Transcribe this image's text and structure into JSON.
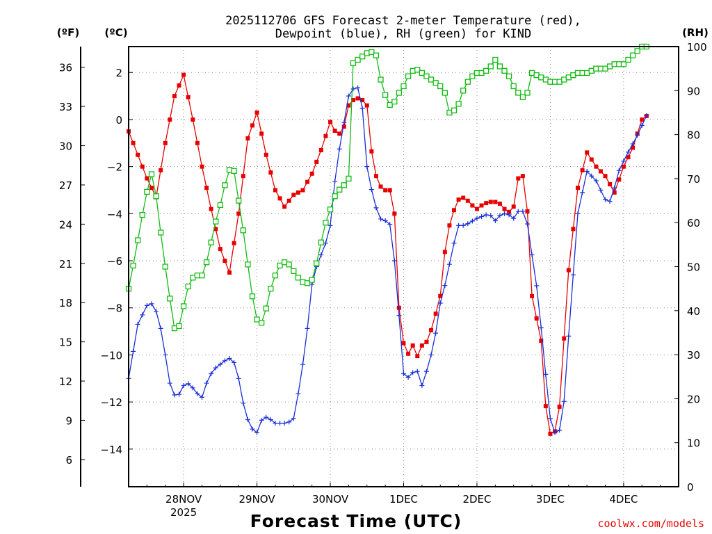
{
  "chart_data": {
    "type": "line",
    "title_line1": "2025112706 GFS Forecast 2-meter Temperature (red),",
    "title_line2": "Dewpoint (blue), RH (green) for KIND",
    "xlabel": "Forecast Time (UTC)",
    "credit": "coolwx.com/models",
    "units": {
      "f": "(ºF)",
      "c": "(ºC)",
      "rh": "(RH)"
    },
    "x_range_hours": [
      0,
      180
    ],
    "x_ticks": [
      {
        "hour": 18,
        "label": "28NOV"
      },
      {
        "hour": 42,
        "label": "29NOV"
      },
      {
        "hour": 66,
        "label": "30NOV"
      },
      {
        "hour": 90,
        "label": "1DEC"
      },
      {
        "hour": 114,
        "label": "2DEC"
      },
      {
        "hour": 138,
        "label": "3DEC"
      },
      {
        "hour": 162,
        "label": "4DEC"
      }
    ],
    "x_year_label": "2025",
    "ylim_c": [
      -15.6,
      3.1
    ],
    "yticks_c": [
      -14,
      -12,
      -10,
      -8,
      -6,
      -4,
      -2,
      0,
      2
    ],
    "yticks_f": [
      6,
      9,
      12,
      15,
      18,
      21,
      24,
      27,
      30,
      33,
      36
    ],
    "ylim_rh": [
      0,
      100
    ],
    "yticks_rh": [
      0,
      10,
      20,
      30,
      40,
      50,
      60,
      70,
      80,
      90,
      100
    ],
    "colors": {
      "temp": "#e60000",
      "dew": "#1a2fd6",
      "rh": "#11bb11",
      "grid": "#888888"
    },
    "series": [
      {
        "name": "Temperature",
        "unit": "C",
        "color": "#e60000",
        "points": [
          [
            0,
            -0.5
          ],
          [
            6,
            -2.5
          ],
          [
            9,
            -3.3
          ],
          [
            12,
            -1.0
          ],
          [
            15,
            1.0
          ],
          [
            18,
            1.9
          ],
          [
            21,
            0.0
          ],
          [
            24,
            -2.0
          ],
          [
            27,
            -3.8
          ],
          [
            30,
            -5.5
          ],
          [
            33,
            -6.5
          ],
          [
            36,
            -4.0
          ],
          [
            39,
            -0.8
          ],
          [
            42,
            0.3
          ],
          [
            45,
            -1.5
          ],
          [
            48,
            -3.0
          ],
          [
            51,
            -3.7
          ],
          [
            54,
            -3.2
          ],
          [
            57,
            -3.0
          ],
          [
            60,
            -2.3
          ],
          [
            63,
            -1.3
          ],
          [
            66,
            -0.1
          ],
          [
            68,
            -0.6
          ],
          [
            70,
            -0.6
          ],
          [
            72,
            0.6
          ],
          [
            74,
            0.9
          ],
          [
            76,
            0.9
          ],
          [
            78,
            0.6
          ],
          [
            80,
            -2.0
          ],
          [
            82,
            -2.8
          ],
          [
            84,
            -3.0
          ],
          [
            86,
            -3.0
          ],
          [
            87,
            -4.0
          ],
          [
            88,
            -7.5
          ],
          [
            90,
            -9.5
          ],
          [
            92,
            -10.1
          ],
          [
            93,
            -9.6
          ],
          [
            95,
            -10.2
          ],
          [
            96,
            -9.6
          ],
          [
            98,
            -9.4
          ],
          [
            100,
            -8.5
          ],
          [
            102,
            -7.5
          ],
          [
            104,
            -5.0
          ],
          [
            106,
            -4.0
          ],
          [
            108,
            -3.4
          ],
          [
            110,
            -3.3
          ],
          [
            112,
            -3.6
          ],
          [
            114,
            -3.8
          ],
          [
            116,
            -3.6
          ],
          [
            118,
            -3.5
          ],
          [
            120,
            -3.5
          ],
          [
            122,
            -3.6
          ],
          [
            124,
            -4.0
          ],
          [
            126,
            -3.7
          ],
          [
            128,
            -2.1
          ],
          [
            130,
            -2.7
          ],
          [
            132,
            -7.5
          ],
          [
            135,
            -9.4
          ],
          [
            137,
            -13.1
          ],
          [
            139,
            -13.6
          ],
          [
            141,
            -12.2
          ],
          [
            144,
            -6.4
          ],
          [
            147,
            -2.9
          ],
          [
            150,
            -1.4
          ],
          [
            153,
            -2.0
          ],
          [
            156,
            -2.4
          ],
          [
            159,
            -3.1
          ],
          [
            162,
            -2.0
          ],
          [
            165,
            -1.2
          ],
          [
            168,
            0.0
          ],
          [
            170,
            0.2
          ]
        ]
      },
      {
        "name": "Dewpoint",
        "unit": "C",
        "color": "#1a2fd6",
        "points": [
          [
            0,
            -11.0
          ],
          [
            3,
            -8.7
          ],
          [
            6,
            -7.9
          ],
          [
            8,
            -7.8
          ],
          [
            10,
            -8.5
          ],
          [
            12,
            -10.0
          ],
          [
            14,
            -11.6
          ],
          [
            16,
            -11.8
          ],
          [
            18,
            -11.3
          ],
          [
            20,
            -11.2
          ],
          [
            22,
            -11.6
          ],
          [
            24,
            -11.8
          ],
          [
            26,
            -11.0
          ],
          [
            28,
            -10.6
          ],
          [
            32,
            -10.2
          ],
          [
            34,
            -10.1
          ],
          [
            36,
            -11.0
          ],
          [
            38,
            -12.4
          ],
          [
            40,
            -13.1
          ],
          [
            42,
            -13.3
          ],
          [
            44,
            -12.6
          ],
          [
            46,
            -12.7
          ],
          [
            48,
            -12.9
          ],
          [
            52,
            -12.9
          ],
          [
            54,
            -12.7
          ],
          [
            56,
            -11.3
          ],
          [
            58,
            -9.5
          ],
          [
            60,
            -7.0
          ],
          [
            62,
            -6.0
          ],
          [
            64,
            -5.5
          ],
          [
            66,
            -4.5
          ],
          [
            68,
            -2.0
          ],
          [
            70,
            -0.5
          ],
          [
            72,
            1.0
          ],
          [
            74,
            1.4
          ],
          [
            76,
            1.3
          ],
          [
            78,
            -2.0
          ],
          [
            80,
            -3.3
          ],
          [
            82,
            -4.2
          ],
          [
            84,
            -4.3
          ],
          [
            86,
            -4.5
          ],
          [
            88,
            -7.5
          ],
          [
            90,
            -10.8
          ],
          [
            92,
            -11.0
          ],
          [
            94,
            -10.5
          ],
          [
            96,
            -11.3
          ],
          [
            98,
            -10.5
          ],
          [
            100,
            -9.5
          ],
          [
            102,
            -7.8
          ],
          [
            104,
            -6.8
          ],
          [
            106,
            -5.5
          ],
          [
            108,
            -4.5
          ],
          [
            110,
            -4.5
          ],
          [
            114,
            -4.2
          ],
          [
            118,
            -4.0
          ],
          [
            120,
            -4.3
          ],
          [
            122,
            -4.0
          ],
          [
            124,
            -4.0
          ],
          [
            126,
            -4.2
          ],
          [
            128,
            -3.8
          ],
          [
            130,
            -4.0
          ],
          [
            134,
            -7.5
          ],
          [
            136,
            -10.2
          ],
          [
            138,
            -12.7
          ],
          [
            140,
            -13.5
          ],
          [
            142,
            -12.9
          ],
          [
            144,
            -9.2
          ],
          [
            147,
            -4.0
          ],
          [
            150,
            -2.2
          ],
          [
            153,
            -2.6
          ],
          [
            156,
            -3.4
          ],
          [
            158,
            -3.5
          ],
          [
            160,
            -2.3
          ],
          [
            163,
            -1.5
          ],
          [
            166,
            -0.8
          ],
          [
            170,
            0.3
          ]
        ]
      },
      {
        "name": "RH",
        "unit": "%",
        "color": "#11bb11",
        "points": [
          [
            0,
            45
          ],
          [
            2,
            52
          ],
          [
            4,
            60
          ],
          [
            6,
            67
          ],
          [
            7,
            71
          ],
          [
            8,
            71
          ],
          [
            9,
            66
          ],
          [
            11,
            55
          ],
          [
            13,
            45
          ],
          [
            15,
            36
          ],
          [
            16,
            35
          ],
          [
            18,
            41
          ],
          [
            20,
            47
          ],
          [
            22,
            48
          ],
          [
            24,
            48
          ],
          [
            26,
            52
          ],
          [
            28,
            59
          ],
          [
            30,
            64
          ],
          [
            32,
            70
          ],
          [
            34,
            74
          ],
          [
            36,
            65
          ],
          [
            38,
            56
          ],
          [
            40,
            45
          ],
          [
            42,
            38
          ],
          [
            44,
            37
          ],
          [
            46,
            44
          ],
          [
            48,
            48
          ],
          [
            50,
            51
          ],
          [
            52,
            51
          ],
          [
            54,
            49
          ],
          [
            56,
            47
          ],
          [
            58,
            46
          ],
          [
            60,
            47
          ],
          [
            62,
            52
          ],
          [
            64,
            59
          ],
          [
            66,
            63
          ],
          [
            68,
            67
          ],
          [
            70,
            68
          ],
          [
            72,
            70
          ],
          [
            73,
            96
          ],
          [
            75,
            97
          ],
          [
            77,
            98
          ],
          [
            79,
            99
          ],
          [
            81,
            98
          ],
          [
            82,
            95
          ],
          [
            83,
            90
          ],
          [
            84,
            89
          ],
          [
            86,
            86
          ],
          [
            88,
            89
          ],
          [
            90,
            91
          ],
          [
            92,
            94
          ],
          [
            94,
            95
          ],
          [
            96,
            94
          ],
          [
            98,
            93
          ],
          [
            100,
            92
          ],
          [
            102,
            91
          ],
          [
            104,
            89
          ],
          [
            105,
            85
          ],
          [
            106,
            85
          ],
          [
            108,
            87
          ],
          [
            110,
            91
          ],
          [
            112,
            93
          ],
          [
            114,
            94
          ],
          [
            116,
            94
          ],
          [
            118,
            95
          ],
          [
            120,
            97
          ],
          [
            122,
            95
          ],
          [
            124,
            94
          ],
          [
            126,
            91
          ],
          [
            128,
            89
          ],
          [
            130,
            88
          ],
          [
            132,
            94
          ],
          [
            135,
            93
          ],
          [
            138,
            92
          ],
          [
            141,
            92
          ],
          [
            144,
            93
          ],
          [
            147,
            94
          ],
          [
            150,
            94
          ],
          [
            153,
            95
          ],
          [
            156,
            95
          ],
          [
            159,
            96
          ],
          [
            162,
            96
          ],
          [
            165,
            98
          ],
          [
            168,
            100
          ],
          [
            170,
            100
          ]
        ]
      }
    ]
  }
}
